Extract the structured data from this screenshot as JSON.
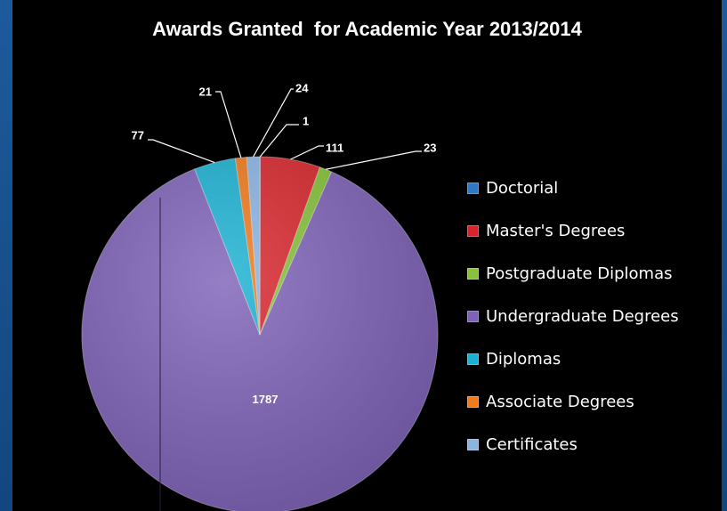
{
  "chart_data": {
    "type": "pie",
    "title": "Awards Granted  for Academic Year 2013/2014",
    "categories": [
      "Doctorial",
      "Master's Degrees",
      "Postgraduate Diplomas",
      "Undergraduate Degrees",
      "Diplomas",
      "Associate Degrees",
      "Certificates"
    ],
    "values": [
      1,
      111,
      23,
      1787,
      77,
      21,
      24
    ],
    "data_labels": [
      "1",
      "111",
      "23",
      "1787",
      "77",
      "21",
      "24"
    ],
    "colors": [
      "#2f78c4",
      "#d8252b",
      "#86c23a",
      "#7e62b8",
      "#1ab1d2",
      "#f07a1c",
      "#8ab4e2"
    ],
    "legend_position": "right",
    "grid": false
  }
}
